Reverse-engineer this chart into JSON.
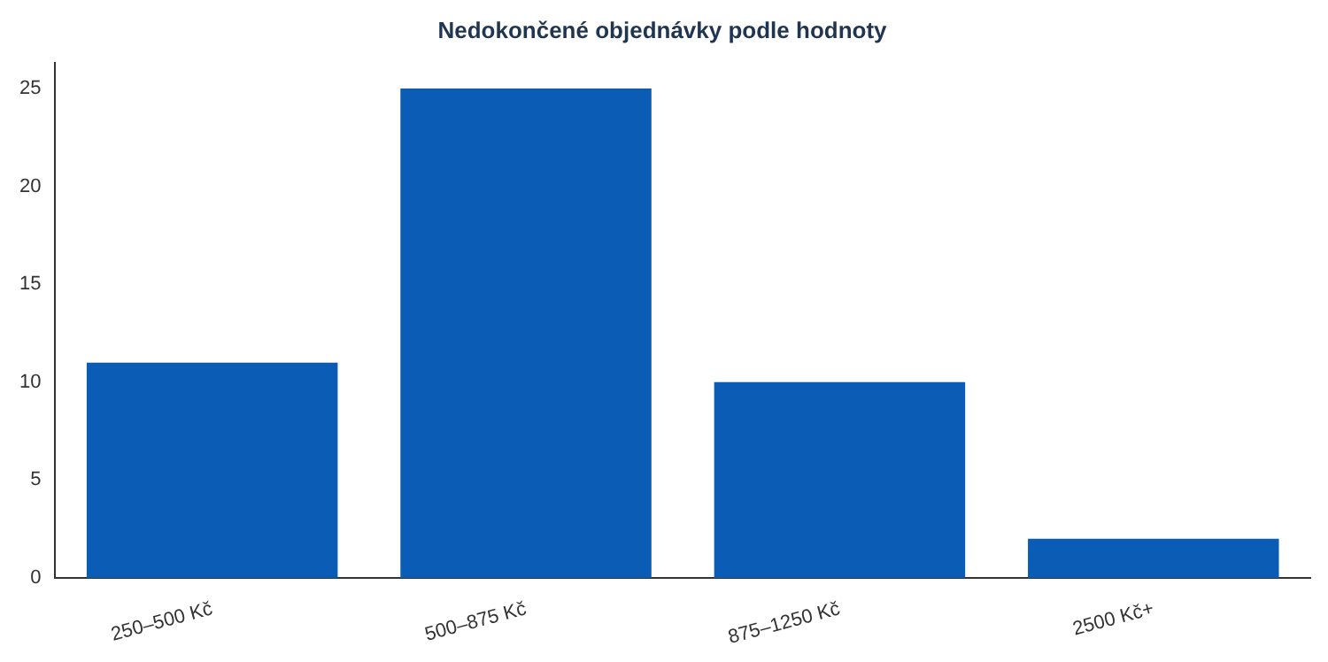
{
  "chart_data": {
    "type": "bar",
    "title": "Nedokončené objednávky podle hodnoty",
    "categories": [
      "250–500 Kč",
      "500–875 Kč",
      "875–1250 Kč",
      "2500 Kč+"
    ],
    "values": [
      11,
      25,
      10,
      2
    ],
    "color": "#0a5cb4",
    "ylim": [
      0,
      26.3
    ],
    "yticks": [
      0,
      5,
      10,
      15,
      20,
      25
    ],
    "grid": false,
    "legend": false
  }
}
